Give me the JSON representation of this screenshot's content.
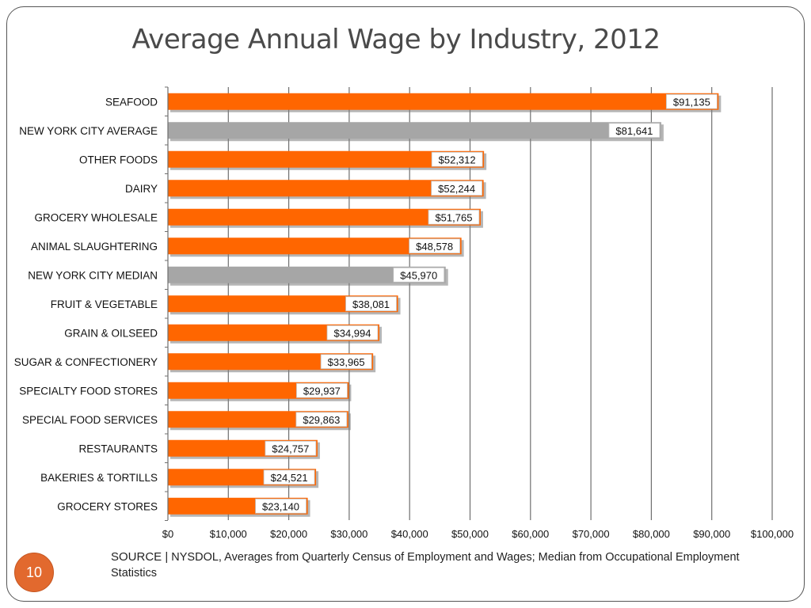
{
  "slide": {
    "title": "Average Annual Wage by Industry, 2012",
    "page_number": "10",
    "source_label": "SOURCE |",
    "source_text": " NYSDOL, Averages from Quarterly Census of Employment and Wages; Median from Occupational Employment Statistics"
  },
  "colors": {
    "industry_bar": "#ff6600",
    "reference_bar": "#a6a6a6",
    "badge": "#e2692e"
  },
  "chart_data": {
    "type": "bar",
    "orientation": "horizontal",
    "xlim": [
      0,
      100000
    ],
    "x_ticks": [
      "$0",
      "$10,000",
      "$20,000",
      "$30,000",
      "$40,000",
      "$50,000",
      "$60,000",
      "$70,000",
      "$80,000",
      "$90,000",
      "$100,000"
    ],
    "grid": true,
    "items": [
      {
        "label": "SEAFOOD",
        "value": 91135,
        "display": "$91,135",
        "kind": "industry"
      },
      {
        "label": "NEW YORK CITY AVERAGE",
        "value": 81641,
        "display": "$81,641",
        "kind": "reference"
      },
      {
        "label": "OTHER FOODS",
        "value": 52312,
        "display": "$52,312",
        "kind": "industry"
      },
      {
        "label": "DAIRY",
        "value": 52244,
        "display": "$52,244",
        "kind": "industry"
      },
      {
        "label": "GROCERY WHOLESALE",
        "value": 51765,
        "display": "$51,765",
        "kind": "industry"
      },
      {
        "label": "ANIMAL SLAUGHTERING",
        "value": 48578,
        "display": "$48,578",
        "kind": "industry"
      },
      {
        "label": "NEW YORK CITY MEDIAN",
        "value": 45970,
        "display": "$45,970",
        "kind": "reference"
      },
      {
        "label": "FRUIT & VEGETABLE",
        "value": 38081,
        "display": "$38,081",
        "kind": "industry"
      },
      {
        "label": "GRAIN & OILSEED",
        "value": 34994,
        "display": "$34,994",
        "kind": "industry"
      },
      {
        "label": "SUGAR & CONFECTIONERY",
        "value": 33965,
        "display": "$33,965",
        "kind": "industry"
      },
      {
        "label": "SPECIALTY FOOD STORES",
        "value": 29937,
        "display": "$29,937",
        "kind": "industry"
      },
      {
        "label": "SPECIAL FOOD SERVICES",
        "value": 29863,
        "display": "$29,863",
        "kind": "industry"
      },
      {
        "label": "RESTAURANTS",
        "value": 24757,
        "display": "$24,757",
        "kind": "industry"
      },
      {
        "label": "BAKERIES & TORTILLS",
        "value": 24521,
        "display": "$24,521",
        "kind": "industry"
      },
      {
        "label": "GROCERY STORES",
        "value": 23140,
        "display": "$23,140",
        "kind": "industry"
      }
    ]
  }
}
